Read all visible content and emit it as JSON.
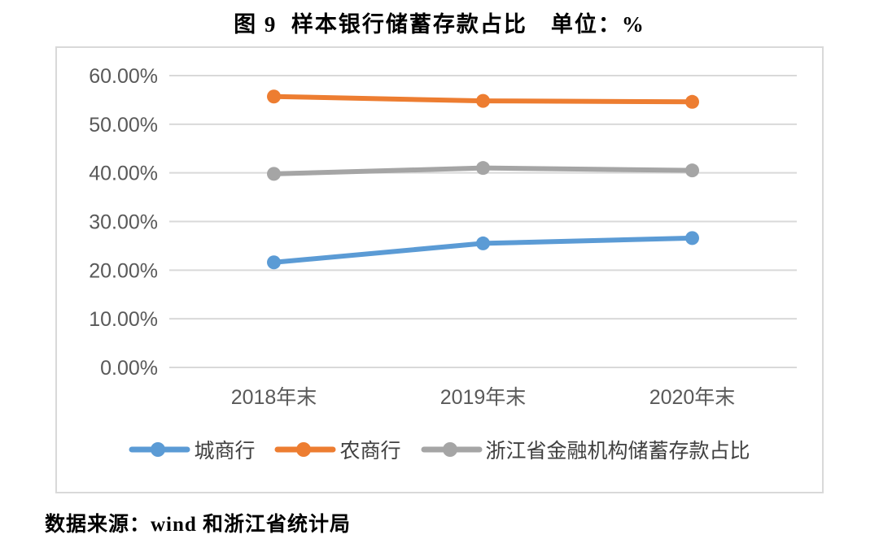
{
  "title": "图 9  样本银行储蓄存款占比　单位：%",
  "source": "数据来源：wind 和浙江省统计局",
  "colors": {
    "grid": "#d9d9d9",
    "frame_border": "#d9d9d9",
    "axis_text": "#595959",
    "legend_text": "#404040",
    "background": "#ffffff"
  },
  "chart_data": {
    "type": "line",
    "title": "图 9 样本银行储蓄存款占比 单位：%",
    "xlabel": "",
    "ylabel": "",
    "categories": [
      "2018年末",
      "2019年末",
      "2020年末"
    ],
    "series": [
      {
        "name": "城商行",
        "color": "#5b9bd5",
        "values": [
          21.6,
          25.5,
          26.6
        ]
      },
      {
        "name": "农商行",
        "color": "#ed7d31",
        "values": [
          55.7,
          54.8,
          54.6
        ]
      },
      {
        "name": "浙江省金融机构储蓄存款占比",
        "color": "#a5a5a5",
        "values": [
          39.8,
          41.0,
          40.5
        ]
      }
    ],
    "ylim": [
      0,
      60
    ],
    "grid": true,
    "legend_position": "bottom",
    "y_ticks": [
      {
        "value": 0,
        "label": "0.00%"
      },
      {
        "value": 10,
        "label": "10.00%"
      },
      {
        "value": 20,
        "label": "20.00%"
      },
      {
        "value": 30,
        "label": "30.00%"
      },
      {
        "value": 40,
        "label": "40.00%"
      },
      {
        "value": 50,
        "label": "50.00%"
      },
      {
        "value": 60,
        "label": "60.00%"
      }
    ]
  }
}
